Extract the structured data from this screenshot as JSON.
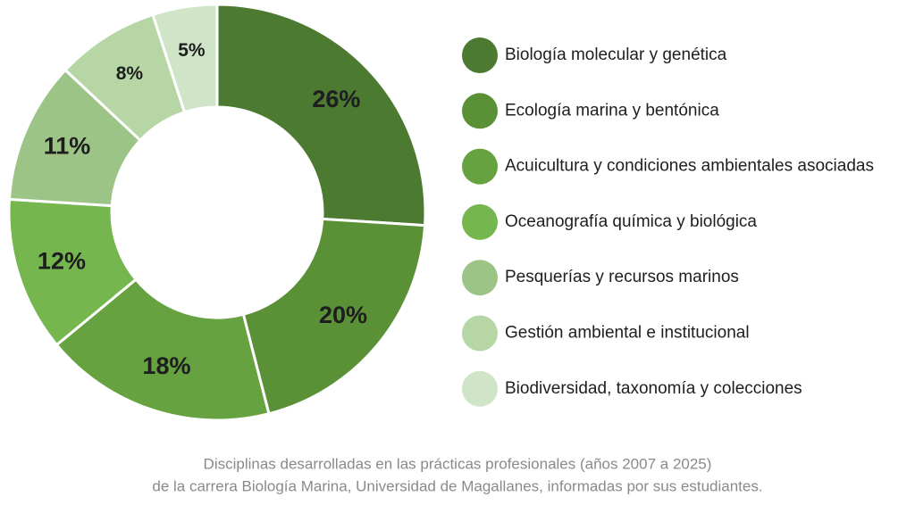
{
  "chart_data": {
    "type": "donut",
    "categories": [
      "Biología molecular y genética",
      "Ecología marina y bentónica",
      "Acuicultura y condiciones ambientales asociadas",
      "Oceanografía química y biológica",
      "Pesquerías y recursos marinos",
      "Gestión ambiental e institucional",
      "Biodiversidad, taxonomía y colecciones"
    ],
    "values": [
      26,
      20,
      18,
      12,
      11,
      8,
      5
    ],
    "value_labels": [
      "26%",
      "20%",
      "18%",
      "12%",
      "11%",
      "8%",
      "5%"
    ],
    "colors": [
      "#4b7a30",
      "#5a9137",
      "#66a23f",
      "#76b64e",
      "#9cc486",
      "#b6d6a6",
      "#d0e4c7"
    ],
    "caption": [
      "Disciplinas desarrolladas en las prácticas profesionales (años 2007 a 2025)",
      "de la carrera Biología Marina, Universidad de Magallanes, informadas por sus estudiantes."
    ]
  }
}
